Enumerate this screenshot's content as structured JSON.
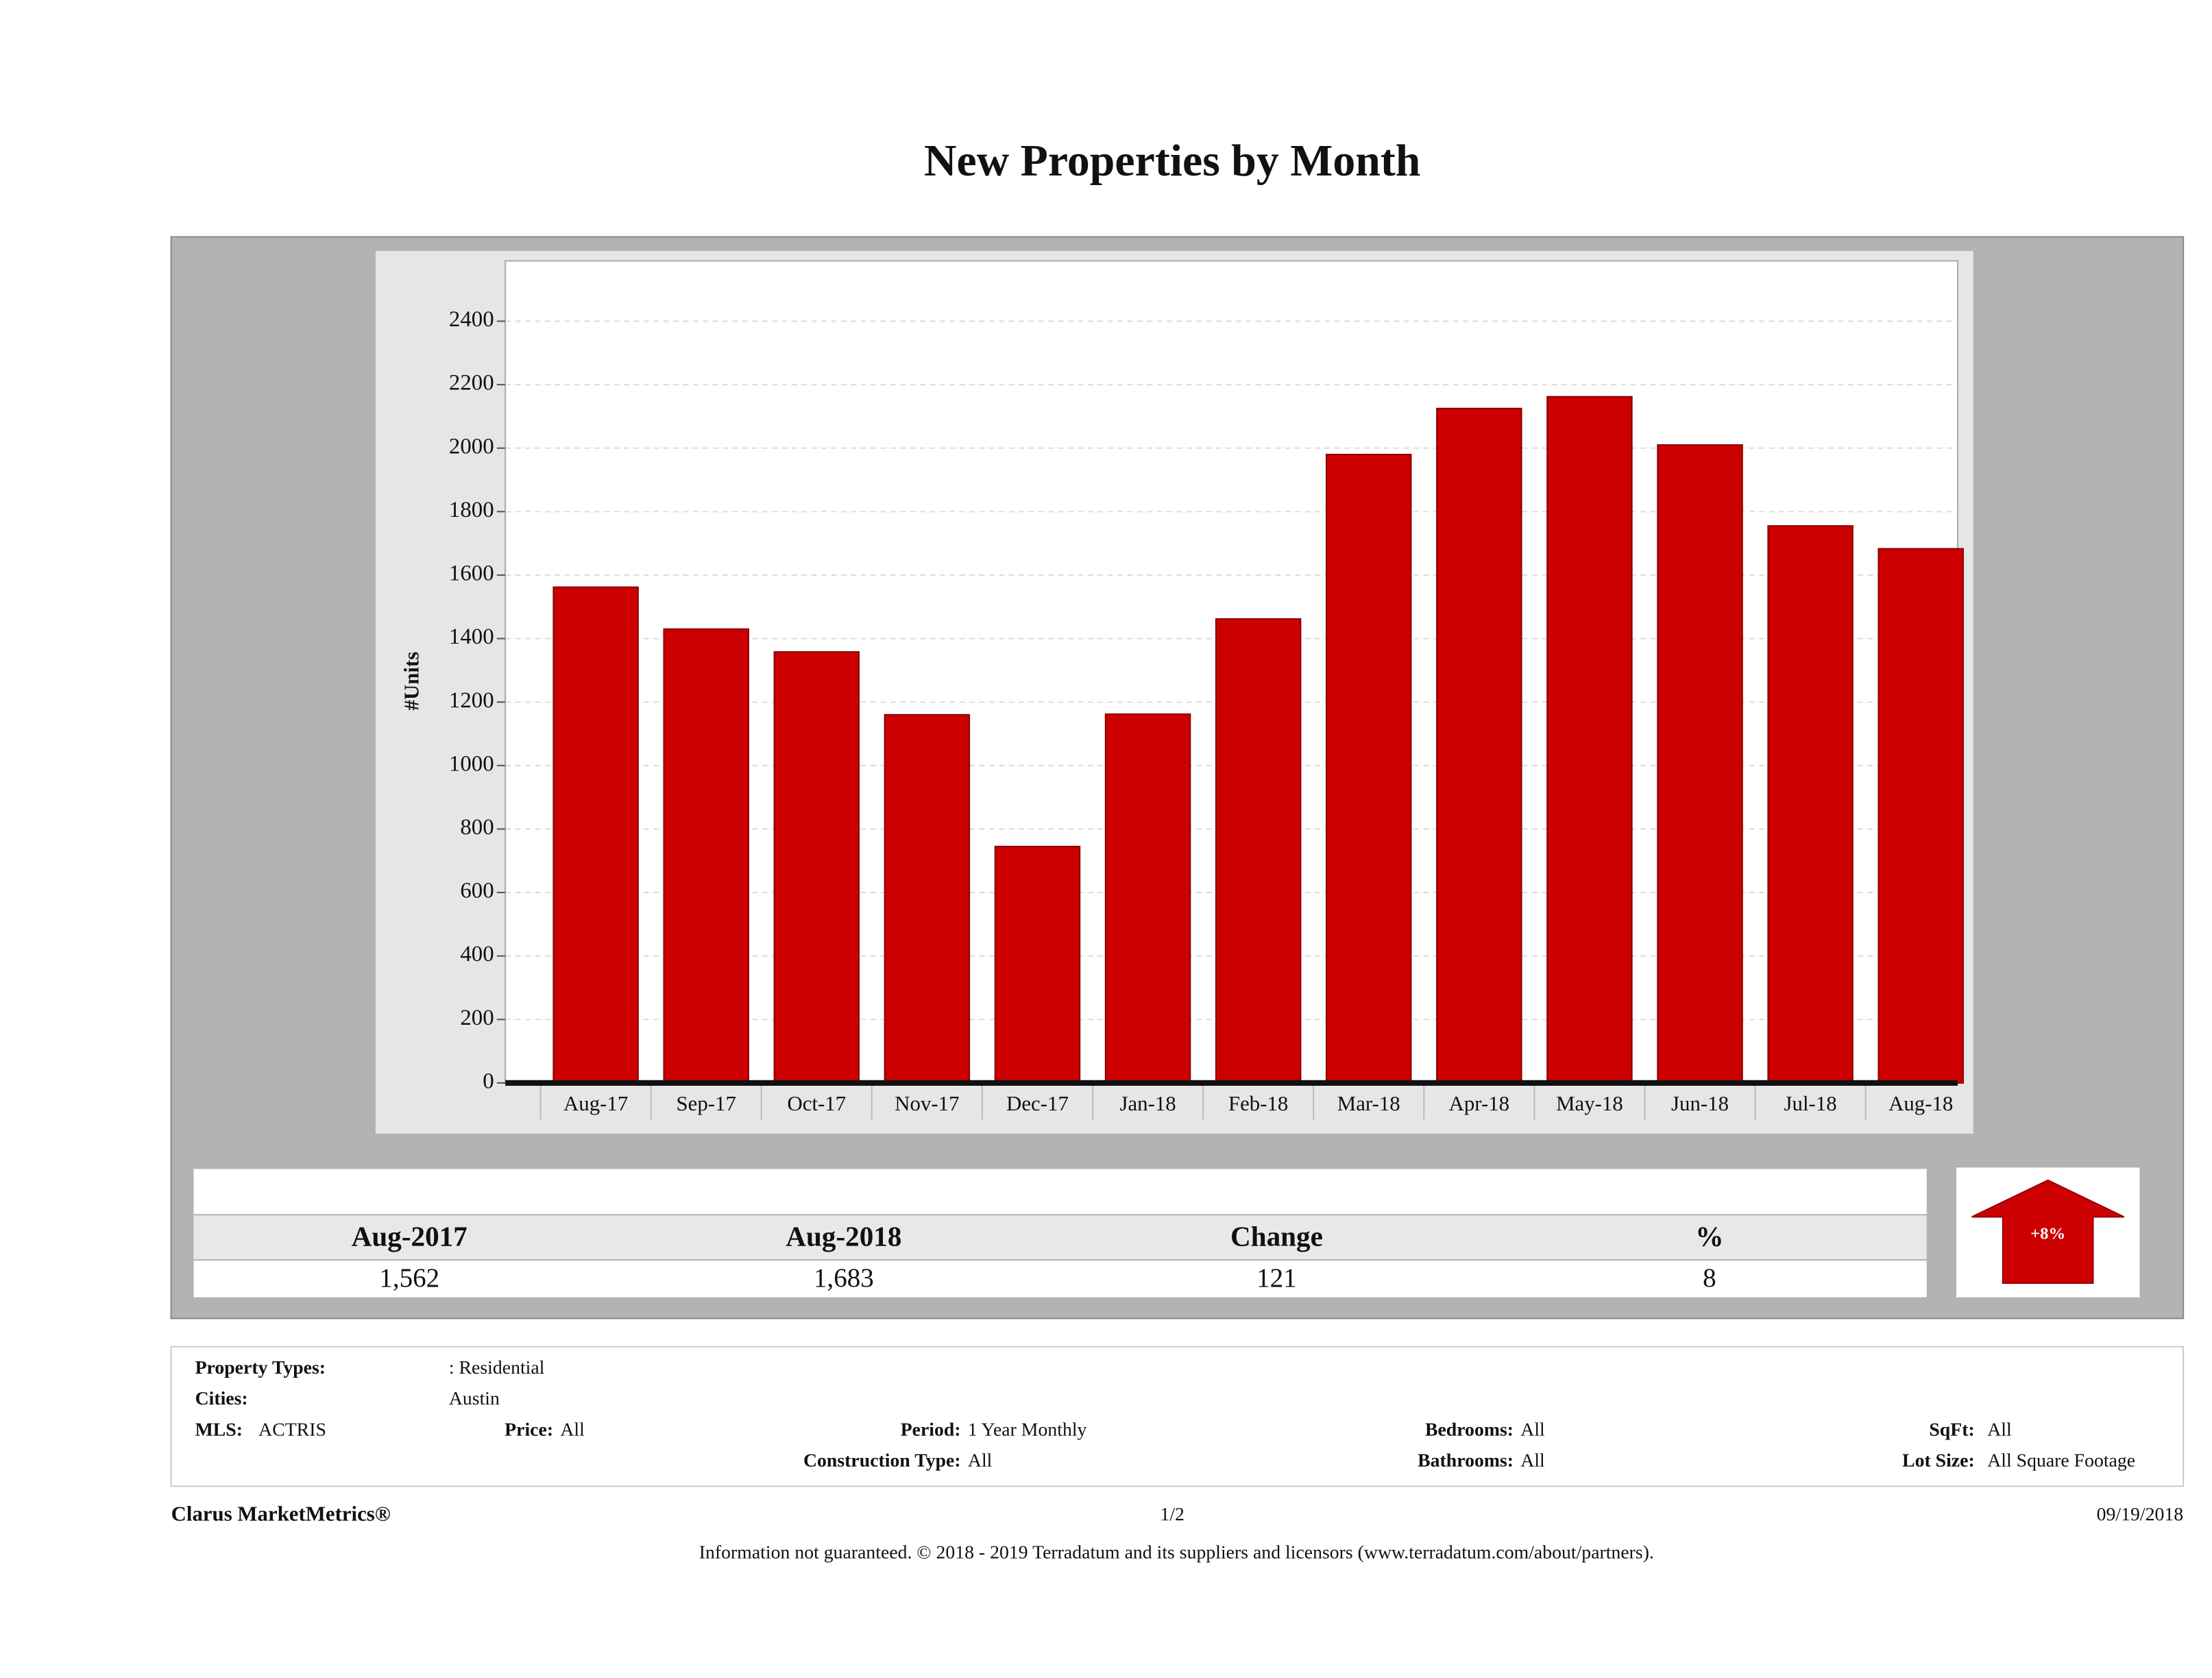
{
  "chart_data": {
    "type": "bar",
    "title": "New Properties by Month",
    "y_label": "#Units",
    "categories": [
      "Aug-17",
      "Sep-17",
      "Oct-17",
      "Nov-17",
      "Dec-17",
      "Jan-18",
      "Feb-18",
      "Mar-18",
      "Apr-18",
      "May-18",
      "Jun-18",
      "Jul-18",
      "Aug-18"
    ],
    "values": [
      1562,
      1430,
      1358,
      1160,
      745,
      1162,
      1462,
      1980,
      2125,
      2162,
      2010,
      1755,
      1683
    ],
    "color": "#cc0000",
    "ylim": [
      0,
      2590
    ],
    "yticks": [
      0,
      200,
      400,
      600,
      800,
      1000,
      1200,
      1400,
      1600,
      1800,
      2000,
      2200,
      2400
    ],
    "grid": true
  },
  "summary": {
    "headers": [
      "Aug-2017",
      "Aug-2018",
      "Change",
      "%"
    ],
    "values": [
      "1,562",
      "1,683",
      "121",
      "8"
    ],
    "arrow_label": "+8%"
  },
  "filters": {
    "property_types_label": "Property Types:",
    "property_types": ": Residential",
    "cities_label": "Cities:",
    "cities": "Austin",
    "mls_label": "MLS:",
    "mls": "ACTRIS",
    "price_label": "Price:",
    "price": "All",
    "period_label": "Period:",
    "period": "1 Year Monthly",
    "construction_label": "Construction Type:",
    "construction": "All",
    "bedrooms_label": "Bedrooms:",
    "bedrooms": "All",
    "bathrooms_label": "Bathrooms:",
    "bathrooms": "All",
    "sqft_label": "SqFt:",
    "sqft": "All",
    "lot_label": "Lot Size:",
    "lot": "All Square Footage"
  },
  "footer": {
    "brand": "Clarus MarketMetrics®",
    "page": "1/2",
    "date": "09/19/2018",
    "disclaimer": "Information not guaranteed. © 2018 - 2019 Terradatum and its suppliers and licensors (www.terradatum.com/about/partners)."
  }
}
